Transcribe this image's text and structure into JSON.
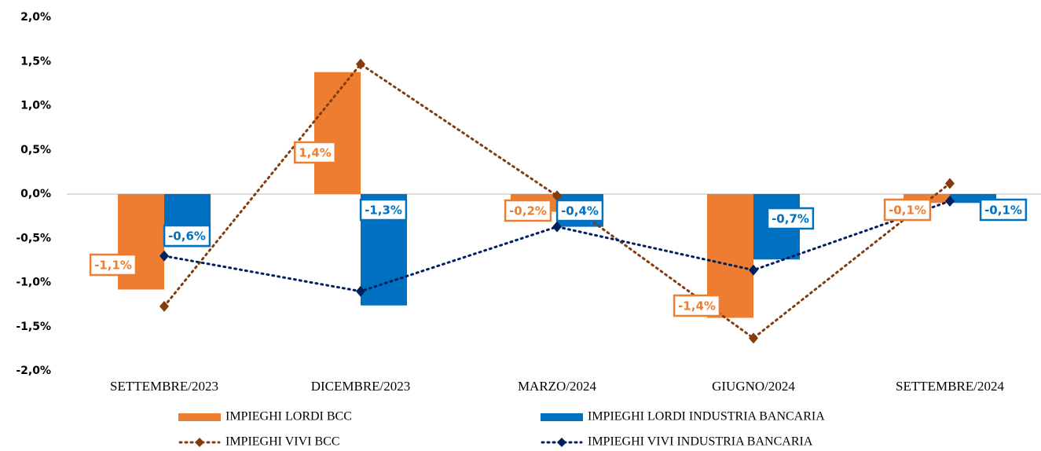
{
  "chart_data": {
    "type": "bar",
    "categories": [
      "SETTEMBRE/2023",
      "DICEMBRE/2023",
      "MARZO/2024",
      "GIUGNO/2024",
      "SETTEMBRE/2024"
    ],
    "series": [
      {
        "name": "IMPIEGHI LORDI BCC",
        "type": "bar",
        "color": "#ED7D31",
        "values": [
          -1.08,
          1.38,
          -0.2,
          -1.4,
          -0.1
        ],
        "value_labels": [
          "-1,1%",
          "1,4%",
          "-0,2%",
          "-1,4%",
          "-0,1%"
        ]
      },
      {
        "name": "IMPIEGHI LORDI INDUSTRIA BANCARIA",
        "type": "bar",
        "color": "#0070C0",
        "values": [
          -0.6,
          -1.26,
          -0.37,
          -0.74,
          -0.1
        ],
        "value_labels": [
          "-0,6%",
          "-1,3%",
          "-0,4%",
          "-0,7%",
          "-0,1%"
        ]
      },
      {
        "name": "IMPIEGHI VIVI BCC",
        "type": "line",
        "color": "#843C0C",
        "values": [
          -1.27,
          1.47,
          -0.02,
          -1.63,
          0.12
        ]
      },
      {
        "name": "IMPIEGHI VIVI INDUSTRIA BANCARIA",
        "type": "line",
        "color": "#002060",
        "values": [
          -0.7,
          -1.1,
          -0.37,
          -0.86,
          -0.08
        ]
      }
    ],
    "ylim": [
      -2,
      2
    ],
    "yticks": [
      {
        "value": 2,
        "label": "2,0%"
      },
      {
        "value": 1.5,
        "label": "1,5%"
      },
      {
        "value": 1,
        "label": "1,0%"
      },
      {
        "value": 0.5,
        "label": "0,5%"
      },
      {
        "value": 0,
        "label": "0,0%"
      },
      {
        "value": -0.5,
        "label": "-0,5%"
      },
      {
        "value": -1,
        "label": "-1,0%"
      },
      {
        "value": -1.5,
        "label": "-1,5%"
      },
      {
        "value": -2,
        "label": "-2,0%"
      }
    ],
    "grid": false
  }
}
